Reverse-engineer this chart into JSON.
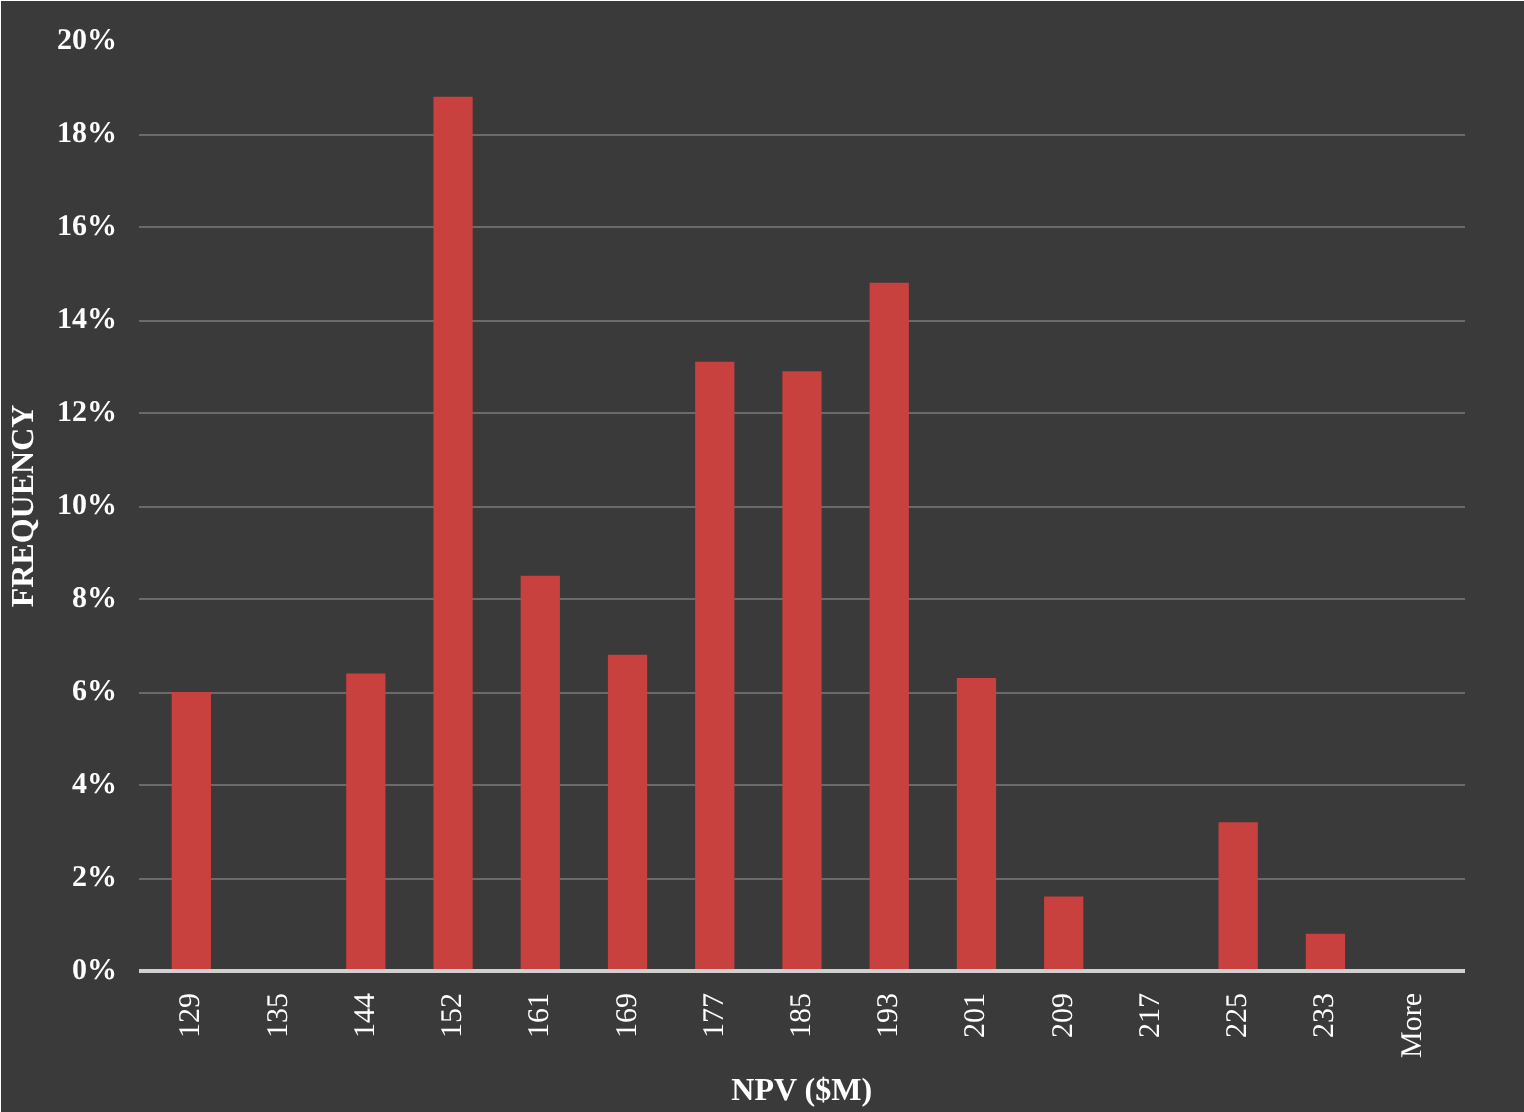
{
  "chart_data": {
    "type": "bar",
    "xlabel": "NPV ($M)",
    "ylabel": "FREQUENCY",
    "categories": [
      "129",
      "135",
      "144",
      "152",
      "161",
      "169",
      "177",
      "185",
      "193",
      "201",
      "209",
      "217",
      "225",
      "233",
      "More"
    ],
    "values": [
      6.0,
      0,
      6.4,
      18.8,
      8.5,
      6.8,
      13.1,
      12.9,
      14.8,
      6.3,
      1.6,
      0,
      3.2,
      0.8,
      0
    ],
    "color": "#c8413f",
    "ylim": [
      0,
      20
    ],
    "yticks": [
      {
        "value": 0,
        "label": "0%"
      },
      {
        "value": 2,
        "label": "2%"
      },
      {
        "value": 4,
        "label": "4%"
      },
      {
        "value": 6,
        "label": "6%"
      },
      {
        "value": 8,
        "label": "8%"
      },
      {
        "value": 10,
        "label": "10%"
      },
      {
        "value": 12,
        "label": "12%"
      },
      {
        "value": 14,
        "label": "14%"
      },
      {
        "value": 16,
        "label": "16%"
      },
      {
        "value": 18,
        "label": "18%"
      },
      {
        "value": 20,
        "label": "20%"
      }
    ],
    "grid": "y"
  }
}
